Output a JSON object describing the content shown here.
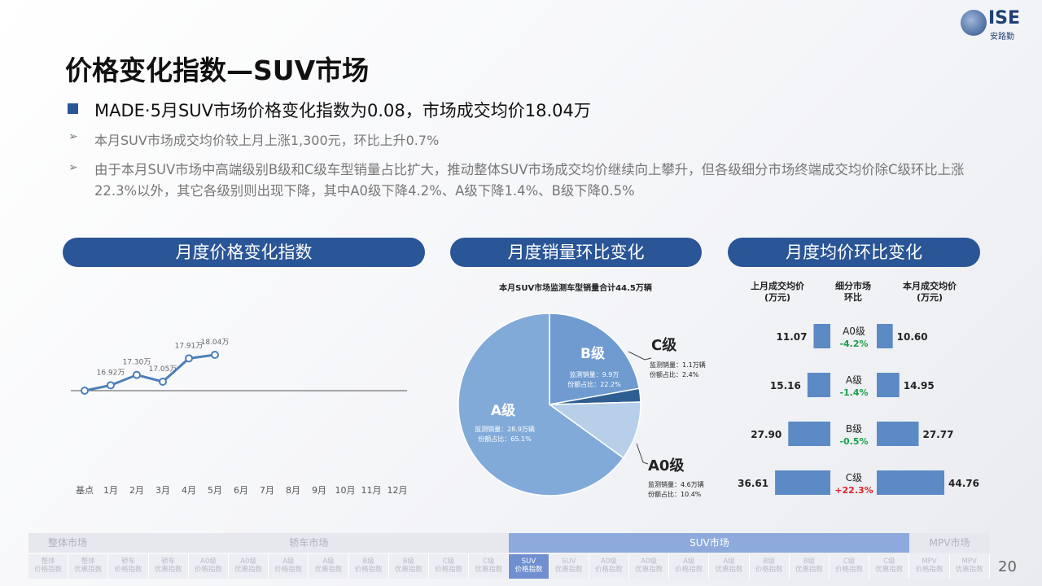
{
  "header": {
    "title": "价格变化指数—SUV市场",
    "logo": "ISE",
    "logo_sub": "安路勤"
  },
  "summary": {
    "headline": "MADE·5月SUV市场价格变化指数为0.08，市场成交均价18.04万",
    "points": [
      "本月SUV市场成交均价较上月上涨1,300元，环比上升0.7%",
      "由于本月SUV市场中高端级别B级和C级车型销量占比扩大，推动整体SUV市场成交均价继续向上攀升，但各级细分市场终端成交均价除C级环比上涨22.3%以外，其它各级别则出现下降，其中A0级下降4.2%、A级下降1.4%、B级下降0.5%"
    ]
  },
  "sections": [
    "月度价格变化指数",
    "月度销量环比变化",
    "月度均价环比变化"
  ],
  "chart_data": [
    {
      "type": "line",
      "color": "#4d7fb8",
      "categories": [
        "基点",
        "1月",
        "2月",
        "3月",
        "4月",
        "5月",
        "6月",
        "7月",
        "8月",
        "9月",
        "10月",
        "11月",
        "12月"
      ],
      "values": [
        16.72,
        16.92,
        17.3,
        17.05,
        17.91,
        18.04,
        null,
        null,
        null,
        null,
        null,
        null,
        null
      ],
      "value_labels": [
        null,
        "16.92万",
        "17.30万",
        "17.05万",
        "17.91万",
        "18.04万",
        null,
        null,
        null,
        null,
        null,
        null,
        null
      ]
    },
    {
      "type": "pie",
      "title": "本月SUV市场监测车型销量合计44.5万辆",
      "categories": [
        "B级",
        "C级",
        "A0级",
        "A级"
      ],
      "values": [
        22.2,
        2.4,
        10.4,
        65.1
      ],
      "value_labels": [
        "份额占比：22.2%",
        "份额占比：2.4%",
        "份额占比：10.4%",
        "份额占比：65.1%"
      ],
      "sales_labels": [
        "监测销量：9.9万",
        "监测销量：1.1万辆",
        "监测销量：4.6万辆",
        "监测销量：28.9万辆"
      ],
      "colors": [
        "#6f9bd0",
        "#2f5f92",
        "#b8cfe9",
        "#82aad9"
      ]
    },
    {
      "type": "bar",
      "color": "#5b8ac4",
      "categories": [
        "A0级",
        "A级",
        "B级",
        "C级"
      ],
      "series": [
        {
          "name": "上月成交均价\n(万元)",
          "values": [
            11.07,
            15.16,
            27.9,
            36.61
          ],
          "value_labels": [
            "11.07",
            "15.16",
            "27.90",
            "36.61"
          ]
        },
        {
          "name": "细分市场\n环比",
          "values": [
            -4.2,
            -1.4,
            -0.5,
            22.3
          ],
          "value_labels": [
            "-4.2%",
            "-1.4%",
            "-0.5%",
            "+22.3%"
          ]
        },
        {
          "name": "本月成交均价\n(万元)",
          "values": [
            10.6,
            14.95,
            27.77,
            44.76
          ],
          "value_labels": [
            "10.60",
            "14.95",
            "27.77",
            "44.76"
          ]
        }
      ],
      "up_color": "#e0202a",
      "down_color": "#1a9e4a"
    }
  ],
  "nav": {
    "groups": [
      {
        "label": "整体市场",
        "items": [
          "整体\n价格指数",
          "整体\n优惠指数"
        ]
      },
      {
        "label": "轿车市场",
        "items": [
          "轿车\n价格指数",
          "轿车\n优惠指数",
          "A0级\n价格指数",
          "A0级\n优惠指数",
          "A级\n价格指数",
          "A级\n优惠指数",
          "B级\n价格指数",
          "B级\n优惠指数",
          "C级\n价格指数",
          "C级\n优惠指数"
        ]
      },
      {
        "label": "SUV市场",
        "items": [
          "SUV\n价格指数",
          "SUV\n优惠指数",
          "A0级\n价格指数",
          "A0级\n优惠指数",
          "A级\n价格指数",
          "A级\n优惠指数",
          "B级\n价格指数",
          "B级\n优惠指数",
          "C级\n价格指数",
          "C级\n优惠指数"
        ]
      },
      {
        "label": "MPV市场",
        "items": [
          "MPV\n价格指数",
          "MPV\n优惠指数"
        ]
      }
    ]
  },
  "page_number": "20"
}
